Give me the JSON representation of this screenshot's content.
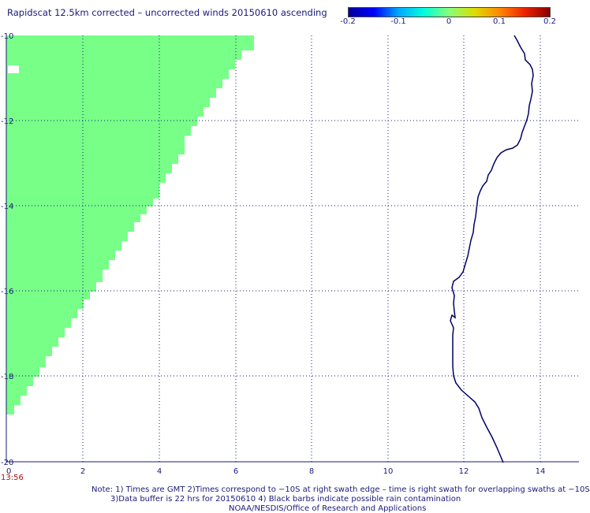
{
  "title": "Rapidscat 12.5km corrected – uncorrected winds 20150610 ascending",
  "colorbar": {
    "labels": [
      "-0.2",
      "-0.1",
      "0",
      "0.1",
      "0.2"
    ],
    "colors": [
      "#00009a",
      "#0000ff",
      "#00aaff",
      "#00ffdd",
      "#88ff77",
      "#dddd00",
      "#ff8800",
      "#ee2200",
      "#880000"
    ]
  },
  "map": {
    "x_ticks": [
      "0",
      "2",
      "4",
      "6",
      "8",
      "10",
      "12",
      "14"
    ],
    "y_ticks": [
      "-10",
      "-12",
      "-14",
      "-16",
      "-18",
      "-20"
    ],
    "time_label": "13:56",
    "swath_color": "#77ff88",
    "coast_color": "#000066",
    "grid": true
  },
  "notes": {
    "line1": "Note: 1) Times are GMT 2)Times correspond to −10S at right swath edge – time is right swath for overlapping swaths at −10S",
    "line2": "3)Data buffer is 22 hrs for 20150610 4) Black barbs indicate possible rain contamination",
    "line3": "NOAA/NESDIS/Office of Research and Applications"
  }
}
